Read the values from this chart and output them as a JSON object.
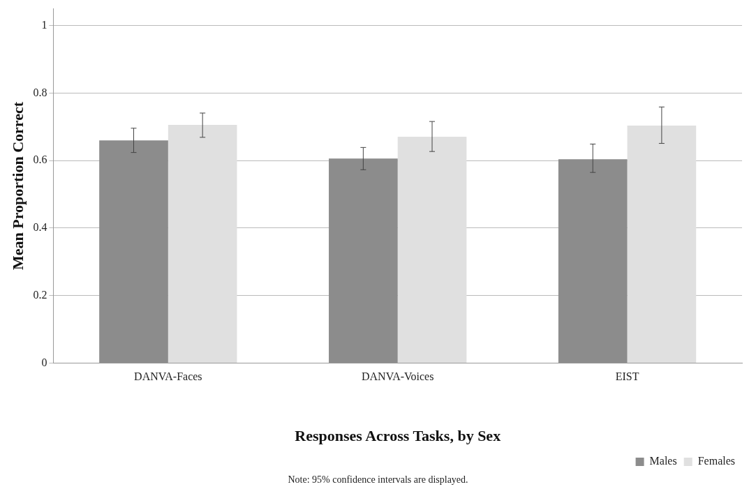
{
  "chart_data": {
    "type": "bar",
    "xlabel": "Responses Across Tasks, by Sex",
    "ylabel": "Mean Proportion Correct",
    "annotations": [
      "Note: 95% confidence intervals are displayed."
    ],
    "categories": [
      "DANVA-Faces",
      "DANVA-Voices",
      "EIST"
    ],
    "series": [
      {
        "name": "Males",
        "color": "#8c8c8c",
        "values": [
          0.66,
          0.606,
          0.604
        ],
        "errors": [
          [
            0.624,
            0.696
          ],
          [
            0.573,
            0.639
          ],
          [
            0.565,
            0.649
          ]
        ]
      },
      {
        "name": "Females",
        "color": "#e0e0e0",
        "values": [
          0.706,
          0.671,
          0.704
        ],
        "errors": [
          [
            0.669,
            0.741
          ],
          [
            0.627,
            0.716
          ],
          [
            0.651,
            0.759
          ]
        ]
      }
    ],
    "ylim": [
      0,
      1.05
    ],
    "yticks": [
      0,
      0.2,
      0.4,
      0.6,
      0.8,
      1
    ],
    "grid": "y",
    "legend": "bottom right"
  }
}
